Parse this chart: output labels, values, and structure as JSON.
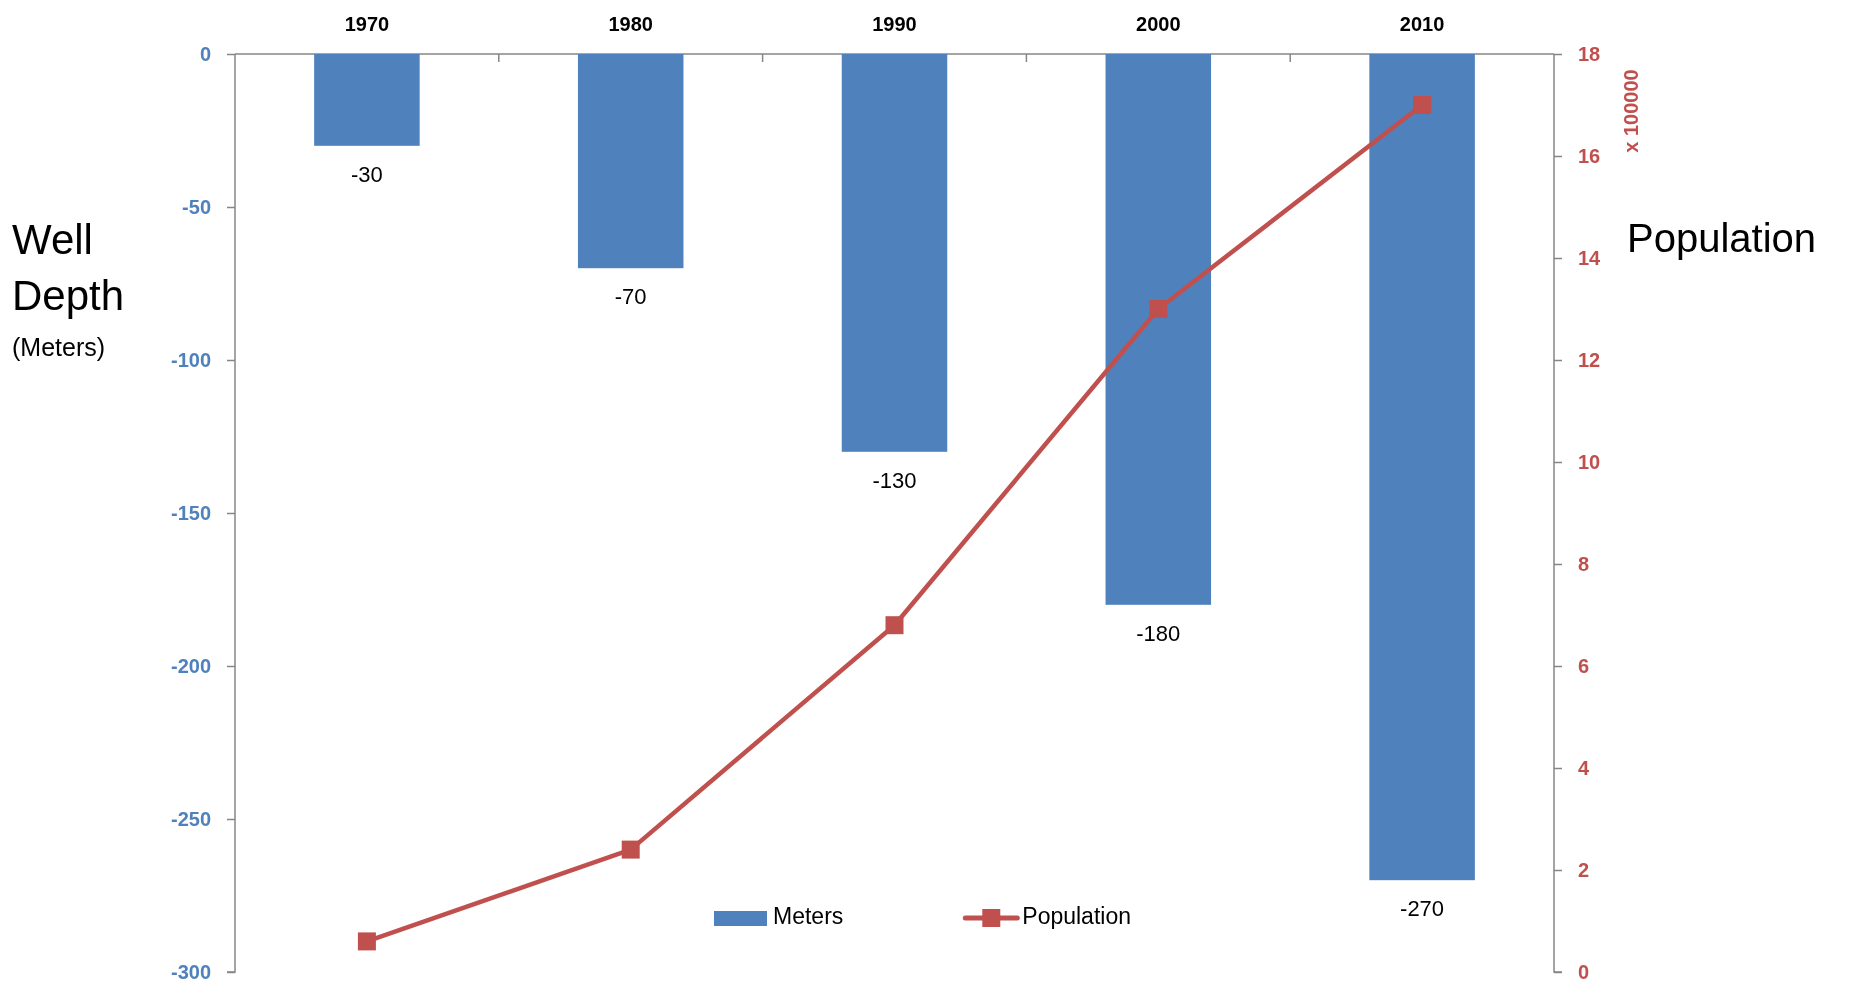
{
  "chart_data": {
    "type": "bar",
    "ylabel": "Well Depth $_{(Meters)}$",
    "y2label": "Population",
    "annotations": [
      "x 100000"
    ],
    "categories": [
      "1970",
      "1980",
      "1990",
      "2000",
      "2010"
    ],
    "series": [
      {
        "name": "Meters",
        "color": "#4f81bd",
        "values": [
          -30,
          -70,
          -130,
          -180,
          -270
        ],
        "value_labels": [
          "-30",
          "-70",
          "-130",
          "-180",
          "-270"
        ]
      },
      {
        "name": "Population",
        "type": "line",
        "axis": "y2",
        "color": "#c0504d",
        "values": [
          0.6,
          2.4,
          6.8,
          13,
          17
        ]
      }
    ],
    "ylim": [
      -300,
      0
    ],
    "yticks": [
      -300,
      -250,
      -200,
      -150,
      -100,
      -50,
      0
    ],
    "y2lim": [
      0,
      18
    ],
    "y2ticks": [
      0,
      2,
      4,
      6,
      8,
      10,
      12,
      14,
      16,
      18
    ],
    "marker": "square",
    "legend": "bottom"
  }
}
